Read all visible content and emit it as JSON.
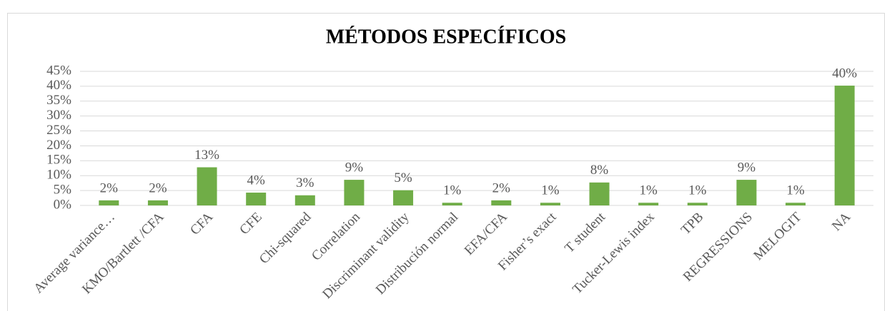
{
  "chart_data": {
    "type": "bar",
    "title": "MÉTODOS ESPECÍFICOS",
    "categories": [
      "Average variance…",
      "KMO/Bartlett /CFA",
      "CFA",
      "CFE",
      "Chi-squared",
      "Correlation",
      "Discriminant validity",
      "Distribución normal",
      "EFA/CFA",
      "Fisher’s exact",
      "T student",
      "Tucker-Lewis index",
      "TPB",
      "REGRESSIONS",
      "MELOGIT",
      "NA"
    ],
    "values": [
      1.7,
      1.7,
      12.8,
      4.3,
      3.4,
      8.6,
      5.1,
      0.9,
      1.7,
      0.9,
      7.7,
      0.9,
      0.9,
      8.6,
      0.9,
      40.2
    ],
    "value_labels": [
      "2%",
      "2%",
      "13%",
      "4%",
      "3%",
      "9%",
      "5%",
      "1%",
      "2%",
      "1%",
      "8%",
      "1%",
      "1%",
      "9%",
      "1%",
      "40%"
    ],
    "color": "#70ad47",
    "ylim": [
      0,
      45
    ],
    "yticks": [
      {
        "value": 0,
        "label": "0%"
      },
      {
        "value": 5,
        "label": "5%"
      },
      {
        "value": 10,
        "label": "10%"
      },
      {
        "value": 15,
        "label": "15%"
      },
      {
        "value": 20,
        "label": "20%"
      },
      {
        "value": 25,
        "label": "25%"
      },
      {
        "value": 30,
        "label": "30%"
      },
      {
        "value": 35,
        "label": "35%"
      },
      {
        "value": 40,
        "label": "40%"
      },
      {
        "value": 45,
        "label": "45%"
      }
    ],
    "grid": true
  }
}
